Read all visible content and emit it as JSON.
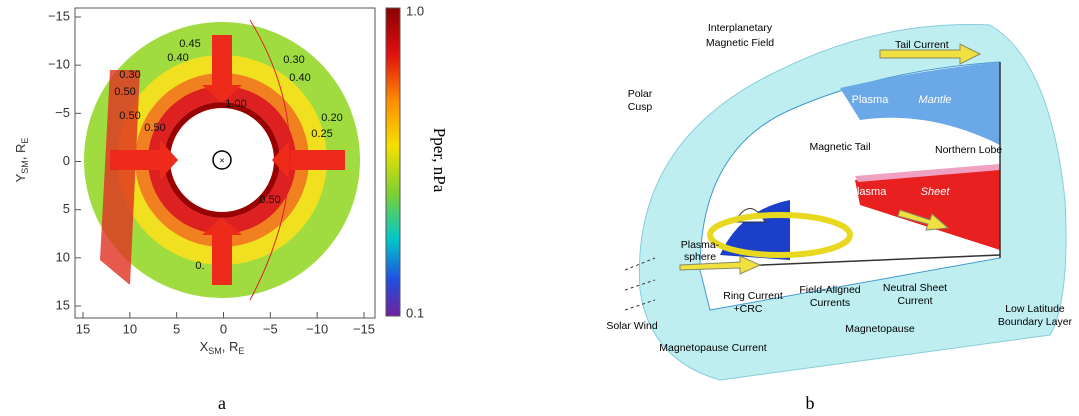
{
  "panel_a": {
    "x_ticks": [
      "15",
      "10",
      "5",
      "0",
      "−5",
      "−10",
      "−15"
    ],
    "y_ticks": [
      "−15",
      "−10",
      "−5",
      "0",
      "5",
      "10",
      "15"
    ],
    "x_label": {
      "main": "X",
      "sub": "SM",
      "mid": ", R",
      "sub2": "E"
    },
    "y_label": {
      "main": "Y",
      "sub": "SM",
      "mid": ", R",
      "sub2": "E"
    },
    "colorbar": {
      "top": "1.0",
      "bottom": "0.1",
      "label": "Pper, nPa"
    },
    "contour_labels": [
      "0.45",
      "0.40",
      "0.30",
      "0.40",
      "0.20",
      "0.25",
      "1.00",
      "0.50",
      "0.50",
      "0.50",
      "0.50",
      "0.30",
      "0."
    ],
    "caption": "a"
  },
  "panel_b": {
    "labels": [
      "Interplanetary",
      "Magnetic Field",
      "Tail Current",
      "Polar",
      "Cusp",
      "Plasma",
      "Mantle",
      "Northern Lobe",
      "Magnetic Tail",
      "Plasma-",
      "sphere",
      "Plasma",
      "Sheet",
      "Neutral Sheet",
      "Current",
      "Ring Current",
      "+CRC",
      "Field-Aligned",
      "Currents",
      "Low Latitude",
      "Boundary Layer",
      "Solar Wind",
      "Magnetopause",
      "Magnetopause Current"
    ],
    "caption": "b"
  }
}
